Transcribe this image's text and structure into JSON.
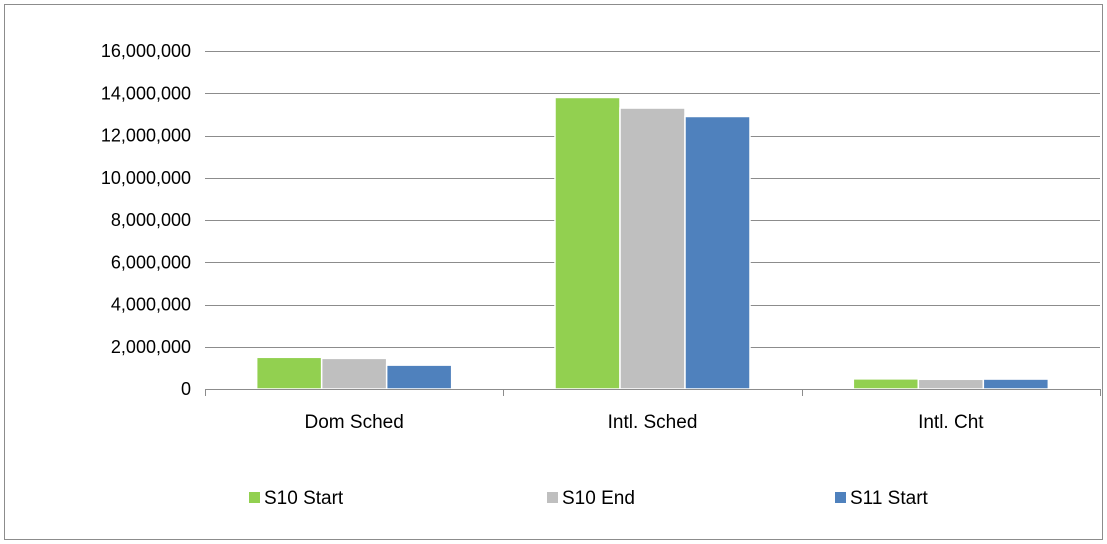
{
  "chart_data": {
    "type": "bar",
    "title": "",
    "xlabel": "",
    "ylabel": "",
    "categories": [
      "Dom Sched",
      "Intl. Sched",
      "Intl. Cht"
    ],
    "series": [
      {
        "name": "S10 Start",
        "color": "#92D050",
        "values": [
          1500000,
          13800000,
          480000
        ]
      },
      {
        "name": "S10 End",
        "color": "#BFBFBF",
        "values": [
          1450000,
          13300000,
          460000
        ]
      },
      {
        "name": "S11 Start",
        "color": "#4F81BD",
        "values": [
          1130000,
          12900000,
          470000
        ]
      }
    ],
    "ylim": [
      0,
      16000000
    ],
    "yticks": [
      0,
      2000000,
      4000000,
      6000000,
      8000000,
      10000000,
      12000000,
      14000000,
      16000000
    ],
    "ytick_labels": [
      "0",
      "2,000,000",
      "4,000,000",
      "6,000,000",
      "8,000,000",
      "10,000,000",
      "12,000,000",
      "14,000,000",
      "16,000,000"
    ],
    "grid": true,
    "legend": "bottom"
  }
}
